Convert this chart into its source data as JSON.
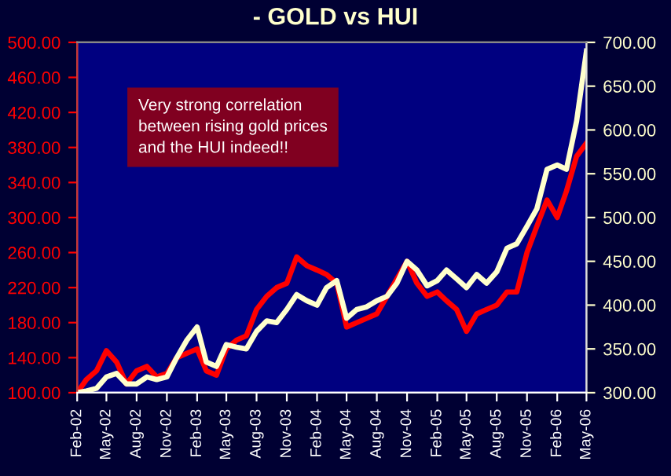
{
  "chart_data": {
    "type": "line",
    "title": "- GOLD vs HUI",
    "series": [
      {
        "color": "#ff0000",
        "axis": "y",
        "x": [
          "2002-02",
          "2002-03",
          "2002-04",
          "2002-05",
          "2002-06",
          "2002-07",
          "2002-08",
          "2002-09",
          "2002-10",
          "2002-11",
          "2002-12",
          "2003-01",
          "2003-02",
          "2003-03",
          "2003-04",
          "2003-05",
          "2003-06",
          "2003-07",
          "2003-08",
          "2003-09",
          "2003-10",
          "2003-11",
          "2003-12",
          "2004-01",
          "2004-02",
          "2004-03",
          "2004-04",
          "2004-05",
          "2004-06",
          "2004-07",
          "2004-08",
          "2004-09",
          "2004-10",
          "2004-11",
          "2004-12",
          "2005-01",
          "2005-02",
          "2005-03",
          "2005-04",
          "2005-05",
          "2005-06",
          "2005-07",
          "2005-08",
          "2005-09",
          "2005-10",
          "2005-11",
          "2005-12",
          "2006-01",
          "2006-02",
          "2006-03",
          "2006-04",
          "2006-05"
        ],
        "values": [
          100,
          115,
          125,
          148,
          135,
          110,
          125,
          130,
          118,
          122,
          140,
          145,
          150,
          125,
          120,
          150,
          160,
          165,
          195,
          210,
          220,
          225,
          255,
          245,
          240,
          235,
          225,
          175,
          180,
          185,
          190,
          210,
          230,
          250,
          225,
          210,
          215,
          205,
          195,
          170,
          190,
          195,
          200,
          215,
          215,
          260,
          290,
          320,
          300,
          330,
          370,
          385
        ]
      },
      {
        "color": "#ffffcc",
        "axis": "y2",
        "x": [
          "2002-02",
          "2002-03",
          "2002-04",
          "2002-05",
          "2002-06",
          "2002-07",
          "2002-08",
          "2002-09",
          "2002-10",
          "2002-11",
          "2002-12",
          "2003-01",
          "2003-02",
          "2003-03",
          "2003-04",
          "2003-05",
          "2003-06",
          "2003-07",
          "2003-08",
          "2003-09",
          "2003-10",
          "2003-11",
          "2003-12",
          "2004-01",
          "2004-02",
          "2004-03",
          "2004-04",
          "2004-05",
          "2004-06",
          "2004-07",
          "2004-08",
          "2004-09",
          "2004-10",
          "2004-11",
          "2004-12",
          "2005-01",
          "2005-02",
          "2005-03",
          "2005-04",
          "2005-05",
          "2005-06",
          "2005-07",
          "2005-08",
          "2005-09",
          "2005-10",
          "2005-11",
          "2005-12",
          "2006-01",
          "2006-02",
          "2006-03",
          "2006-04",
          "2006-05"
        ],
        "values": [
          300,
          302,
          305,
          318,
          322,
          310,
          310,
          318,
          315,
          318,
          340,
          360,
          375,
          335,
          330,
          355,
          352,
          350,
          370,
          382,
          380,
          395,
          412,
          405,
          400,
          420,
          428,
          385,
          395,
          398,
          405,
          410,
          425,
          450,
          440,
          422,
          428,
          440,
          430,
          420,
          435,
          425,
          438,
          465,
          470,
          490,
          510,
          555,
          560,
          555,
          610,
          690
        ]
      }
    ],
    "xlim": [
      "2002-02",
      "2006-05"
    ],
    "xticks": [
      {
        "value": "2002-02",
        "label": "Feb-02"
      },
      {
        "value": "2002-05",
        "label": "May-02"
      },
      {
        "value": "2002-08",
        "label": "Aug-02"
      },
      {
        "value": "2002-11",
        "label": "Nov-02"
      },
      {
        "value": "2003-02",
        "label": "Feb-03"
      },
      {
        "value": "2003-05",
        "label": "May-03"
      },
      {
        "value": "2003-08",
        "label": "Aug-03"
      },
      {
        "value": "2003-11",
        "label": "Nov-03"
      },
      {
        "value": "2004-02",
        "label": "Feb-04"
      },
      {
        "value": "2004-05",
        "label": "May-04"
      },
      {
        "value": "2004-08",
        "label": "Aug-04"
      },
      {
        "value": "2004-11",
        "label": "Nov-04"
      },
      {
        "value": "2005-02",
        "label": "Feb-05"
      },
      {
        "value": "2005-05",
        "label": "May-05"
      },
      {
        "value": "2005-08",
        "label": "Aug-05"
      },
      {
        "value": "2005-11",
        "label": "Nov-05"
      },
      {
        "value": "2006-02",
        "label": "Feb-06"
      },
      {
        "value": "2006-05",
        "label": "May-06"
      }
    ],
    "ylim": [
      100,
      500
    ],
    "yticks": [
      {
        "value": 100,
        "label": "100.00"
      },
      {
        "value": 140,
        "label": "140.00"
      },
      {
        "value": 180,
        "label": "180.00"
      },
      {
        "value": 220,
        "label": "220.00"
      },
      {
        "value": 260,
        "label": "260.00"
      },
      {
        "value": 300,
        "label": "300.00"
      },
      {
        "value": 340,
        "label": "340.00"
      },
      {
        "value": 380,
        "label": "380.00"
      },
      {
        "value": 420,
        "label": "420.00"
      },
      {
        "value": 460,
        "label": "460.00"
      },
      {
        "value": 500,
        "label": "500.00"
      }
    ],
    "y2lim": [
      300,
      700
    ],
    "y2ticks": [
      {
        "value": 300,
        "label": "300.00"
      },
      {
        "value": 350,
        "label": "350.00"
      },
      {
        "value": 400,
        "label": "400.00"
      },
      {
        "value": 450,
        "label": "450.00"
      },
      {
        "value": 500,
        "label": "500.00"
      },
      {
        "value": 550,
        "label": "550.00"
      },
      {
        "value": 600,
        "label": "600.00"
      },
      {
        "value": 650,
        "label": "650.00"
      },
      {
        "value": 700,
        "label": "700.00"
      }
    ],
    "annotations": [
      "Very strong correlation\nbetween rising gold prices\nand the HUI indeed!!"
    ],
    "grid": false,
    "legend": false,
    "marker": "none",
    "line_style": "solid"
  }
}
